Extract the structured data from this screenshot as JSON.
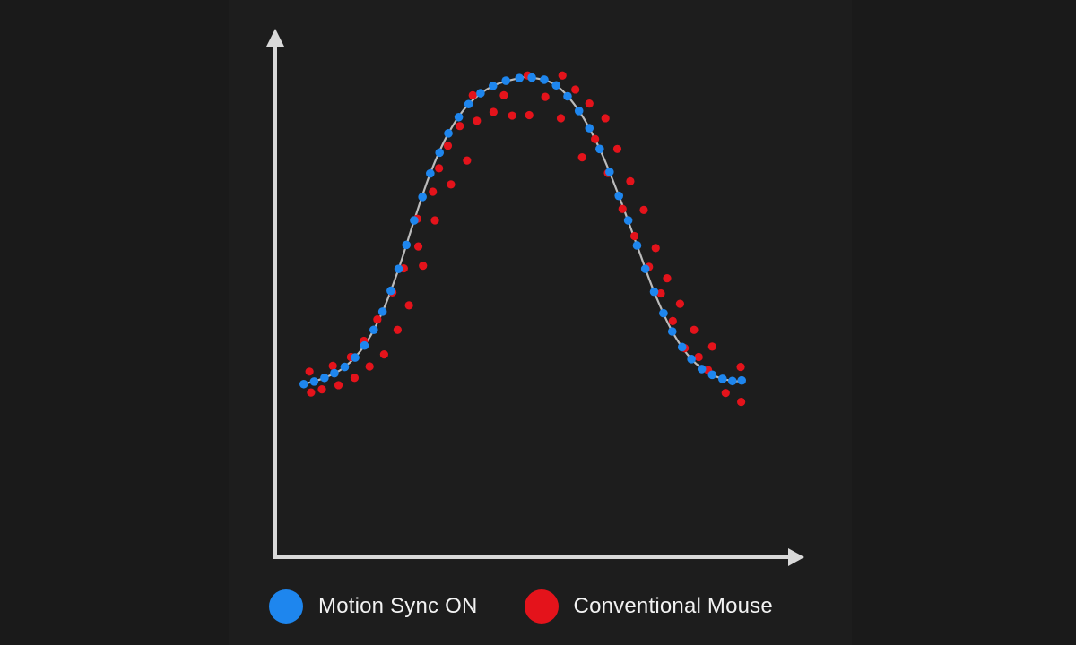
{
  "chart_data": {
    "type": "scatter",
    "title": "",
    "xlabel": "",
    "ylabel": "",
    "xlim": [
      0,
      100
    ],
    "ylim": [
      0,
      100
    ],
    "grid": false,
    "legend_position": "bottom",
    "series": [
      {
        "name": "Motion Sync ON",
        "color": "#1e86ee",
        "points": [
          [
            5.5,
            33.2
          ],
          [
            7.5,
            33.7
          ],
          [
            9.5,
            34.4
          ],
          [
            11.4,
            35.3
          ],
          [
            13.4,
            36.5
          ],
          [
            15.4,
            38.3
          ],
          [
            17.2,
            40.6
          ],
          [
            19.0,
            43.6
          ],
          [
            20.7,
            47.1
          ],
          [
            22.3,
            51.1
          ],
          [
            23.8,
            55.3
          ],
          [
            25.3,
            59.9
          ],
          [
            26.8,
            64.6
          ],
          [
            28.4,
            69.1
          ],
          [
            29.9,
            73.6
          ],
          [
            31.7,
            77.6
          ],
          [
            33.4,
            81.3
          ],
          [
            35.4,
            84.4
          ],
          [
            37.3,
            86.9
          ],
          [
            39.6,
            89.0
          ],
          [
            42.0,
            90.4
          ],
          [
            44.5,
            91.4
          ],
          [
            47.1,
            91.9
          ],
          [
            49.5,
            92.0
          ],
          [
            51.9,
            91.6
          ],
          [
            54.2,
            90.5
          ],
          [
            56.4,
            88.4
          ],
          [
            58.6,
            85.6
          ],
          [
            60.6,
            82.3
          ],
          [
            62.6,
            78.3
          ],
          [
            64.5,
            73.9
          ],
          [
            66.3,
            69.3
          ],
          [
            68.1,
            64.6
          ],
          [
            69.8,
            59.8
          ],
          [
            71.4,
            55.3
          ],
          [
            73.1,
            50.9
          ],
          [
            74.9,
            46.8
          ],
          [
            76.6,
            43.3
          ],
          [
            78.5,
            40.3
          ],
          [
            80.3,
            38.0
          ],
          [
            82.3,
            36.1
          ],
          [
            84.3,
            35.0
          ],
          [
            86.3,
            34.2
          ],
          [
            88.2,
            33.8
          ],
          [
            90.0,
            33.9
          ]
        ]
      },
      {
        "name": "Conventional Mouse",
        "color": "#e4131b",
        "points": [
          [
            6.6,
            35.6
          ],
          [
            6.9,
            31.6
          ],
          [
            9.0,
            32.2
          ],
          [
            11.1,
            36.7
          ],
          [
            12.2,
            33.0
          ],
          [
            14.6,
            38.4
          ],
          [
            15.3,
            34.4
          ],
          [
            17.1,
            41.5
          ],
          [
            18.2,
            36.6
          ],
          [
            19.7,
            45.6
          ],
          [
            21.0,
            38.9
          ],
          [
            22.6,
            50.8
          ],
          [
            23.6,
            43.6
          ],
          [
            24.8,
            55.4
          ],
          [
            25.8,
            48.3
          ],
          [
            27.4,
            64.9
          ],
          [
            27.6,
            59.6
          ],
          [
            28.5,
            55.9
          ],
          [
            30.4,
            70.1
          ],
          [
            30.8,
            64.6
          ],
          [
            31.6,
            74.6
          ],
          [
            33.3,
            78.9
          ],
          [
            33.9,
            71.5
          ],
          [
            35.6,
            82.7
          ],
          [
            37.0,
            76.1
          ],
          [
            38.1,
            88.6
          ],
          [
            38.9,
            83.7
          ],
          [
            42.1,
            85.4
          ],
          [
            44.1,
            88.6
          ],
          [
            45.7,
            84.7
          ],
          [
            48.7,
            92.4
          ],
          [
            49.0,
            84.8
          ],
          [
            52.1,
            88.3
          ],
          [
            55.4,
            92.4
          ],
          [
            55.1,
            84.2
          ],
          [
            57.9,
            89.7
          ],
          [
            59.2,
            76.7
          ],
          [
            60.6,
            87.0
          ],
          [
            61.7,
            80.2
          ],
          [
            63.7,
            84.2
          ],
          [
            64.2,
            73.7
          ],
          [
            66.0,
            78.3
          ],
          [
            67.0,
            66.8
          ],
          [
            68.5,
            72.1
          ],
          [
            69.3,
            61.6
          ],
          [
            71.1,
            66.6
          ],
          [
            72.1,
            55.7
          ],
          [
            73.4,
            59.3
          ],
          [
            74.4,
            50.6
          ],
          [
            75.6,
            53.5
          ],
          [
            76.7,
            45.3
          ],
          [
            78.1,
            48.6
          ],
          [
            79.0,
            40.1
          ],
          [
            80.8,
            43.6
          ],
          [
            81.7,
            38.4
          ],
          [
            83.5,
            35.9
          ],
          [
            84.3,
            40.4
          ],
          [
            86.9,
            31.5
          ],
          [
            89.8,
            36.5
          ],
          [
            89.9,
            29.8
          ]
        ]
      },
      {
        "name": "",
        "color": "#bbbbbb",
        "type": "line",
        "points": [
          [
            5.5,
            33.2
          ],
          [
            9.5,
            34.4
          ],
          [
            13.4,
            36.5
          ],
          [
            17.2,
            40.6
          ],
          [
            20.7,
            47.1
          ],
          [
            23.8,
            55.3
          ],
          [
            26.8,
            64.6
          ],
          [
            29.9,
            73.6
          ],
          [
            33.4,
            81.3
          ],
          [
            37.3,
            86.9
          ],
          [
            42.0,
            90.4
          ],
          [
            47.1,
            91.9
          ],
          [
            49.5,
            92.0
          ],
          [
            54.2,
            90.5
          ],
          [
            58.6,
            85.6
          ],
          [
            62.6,
            78.3
          ],
          [
            66.3,
            69.3
          ],
          [
            69.8,
            59.8
          ],
          [
            73.1,
            50.9
          ],
          [
            76.6,
            43.3
          ],
          [
            80.3,
            38.0
          ],
          [
            84.3,
            35.0
          ],
          [
            88.2,
            33.8
          ],
          [
            90.0,
            33.9
          ]
        ]
      }
    ]
  },
  "legend": {
    "items": [
      {
        "label": "Motion Sync ON",
        "color": "#1e86ee"
      },
      {
        "label": "Conventional Mouse",
        "color": "#e4131b"
      }
    ]
  }
}
